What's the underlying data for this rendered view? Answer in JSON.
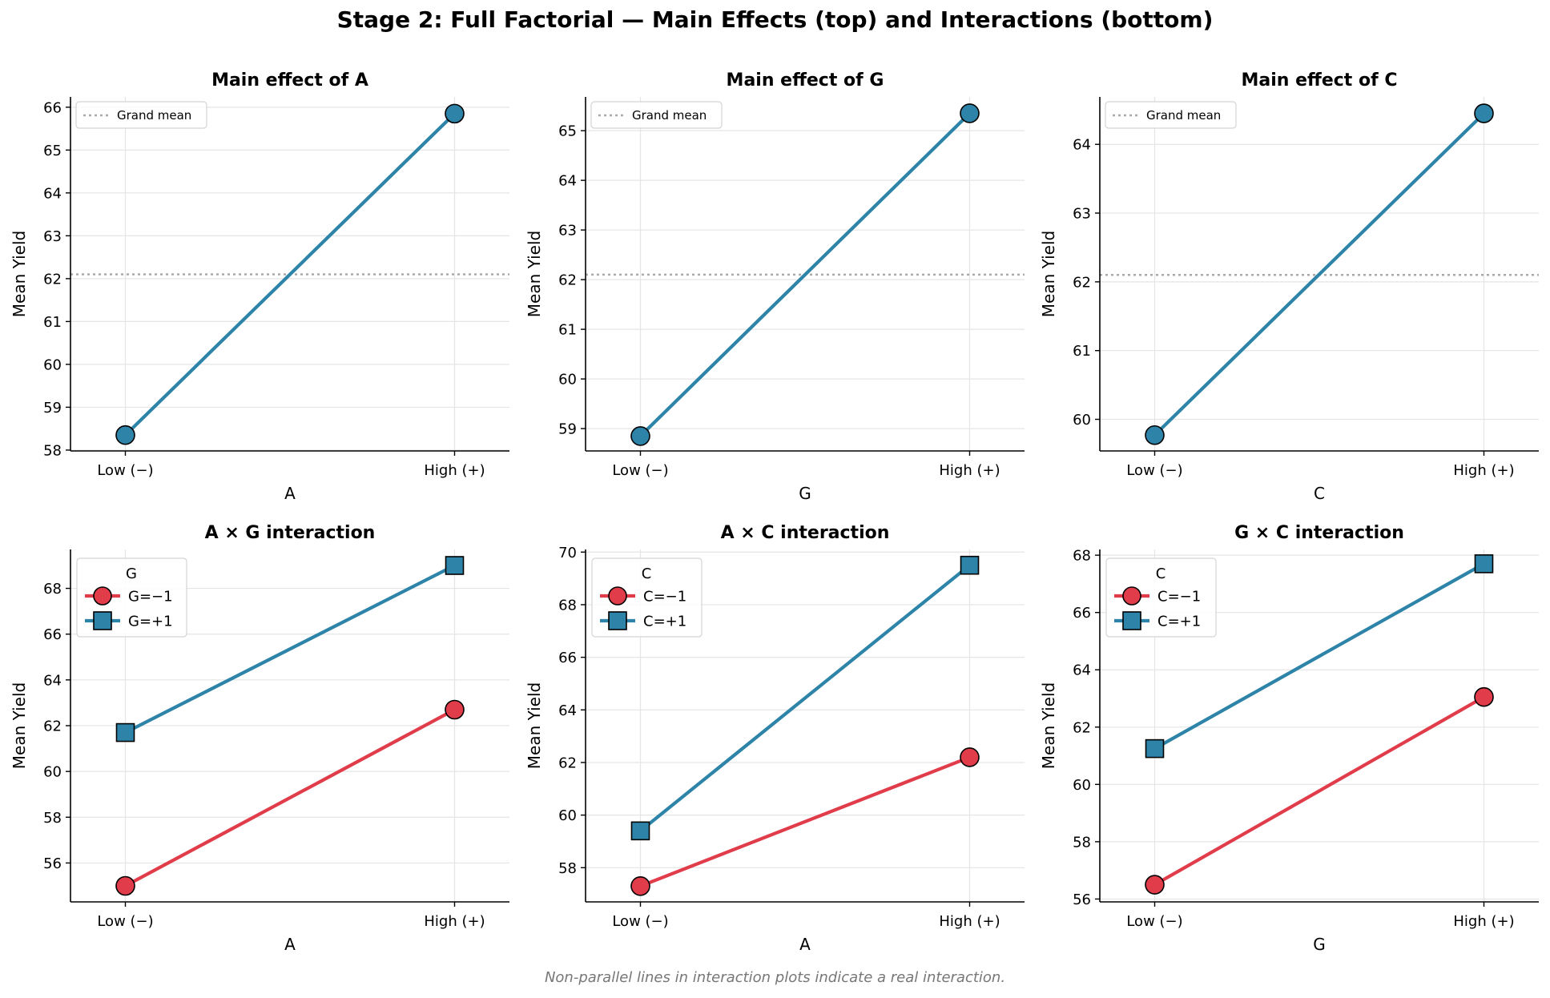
{
  "figure": {
    "title": "Stage 2: Full Factorial — Main Effects (top) and Interactions (bottom)",
    "footnote": "Non-parallel lines in interaction plots indicate a real interaction."
  },
  "colors": {
    "main": "#2d84a8",
    "low_series": "#e03c4a",
    "high_series": "#2d84a8",
    "grand_mean": "#aaaaaa",
    "grid": "#e5e5e5"
  },
  "chart_data": [
    {
      "type": "line",
      "title": "Main effect of A",
      "xlabel": "A",
      "ylabel": "Mean Yield",
      "categories": [
        "Low (−)",
        "High (+)"
      ],
      "ylim": [
        57.98,
        66.24
      ],
      "yticks": [
        58,
        59,
        60,
        61,
        62,
        63,
        64,
        65,
        66
      ],
      "grand_mean": 62.1,
      "legend": {
        "title": "",
        "position": "upper-left",
        "entries": [
          "Grand mean"
        ]
      },
      "grid": true,
      "series": [
        {
          "values": [
            58.35,
            65.85
          ],
          "marker": "circle",
          "color": "#2d84a8"
        }
      ]
    },
    {
      "type": "line",
      "title": "Main effect of G",
      "xlabel": "G",
      "ylabel": "Mean Yield",
      "categories": [
        "Low (−)",
        "High (+)"
      ],
      "ylim": [
        58.55,
        65.68
      ],
      "yticks": [
        59,
        60,
        61,
        62,
        63,
        64,
        65
      ],
      "grand_mean": 62.1,
      "legend": {
        "title": "",
        "position": "upper-left",
        "entries": [
          "Grand mean"
        ]
      },
      "grid": true,
      "series": [
        {
          "values": [
            58.85,
            65.35
          ],
          "marker": "circle",
          "color": "#2d84a8"
        }
      ]
    },
    {
      "type": "line",
      "title": "Main effect of C",
      "xlabel": "C",
      "ylabel": "Mean Yield",
      "categories": [
        "Low (−)",
        "High (+)"
      ],
      "ylim": [
        59.54,
        64.69
      ],
      "yticks": [
        60,
        61,
        62,
        63,
        64
      ],
      "grand_mean": 62.1,
      "legend": {
        "title": "",
        "position": "upper-left",
        "entries": [
          "Grand mean"
        ]
      },
      "grid": true,
      "series": [
        {
          "values": [
            59.77,
            64.45
          ],
          "marker": "circle",
          "color": "#2d84a8"
        }
      ]
    },
    {
      "type": "line",
      "title": "A × G interaction",
      "xlabel": "A",
      "ylabel": "Mean Yield",
      "categories": [
        "Low (−)",
        "High (+)"
      ],
      "ylim": [
        54.3,
        69.7
      ],
      "yticks": [
        56,
        58,
        60,
        62,
        64,
        66,
        68
      ],
      "legend": {
        "title": "G",
        "position": "upper-left"
      },
      "grid": true,
      "series": [
        {
          "name": "G=−1",
          "values": [
            55.0,
            62.7
          ],
          "marker": "circle",
          "color": "#e03c4a"
        },
        {
          "name": "G=+1",
          "values": [
            61.7,
            69.0
          ],
          "marker": "square",
          "color": "#2d84a8"
        }
      ]
    },
    {
      "type": "line",
      "title": "A × C interaction",
      "xlabel": "A",
      "ylabel": "Mean Yield",
      "categories": [
        "Low (−)",
        "High (+)"
      ],
      "ylim": [
        56.7,
        70.1
      ],
      "yticks": [
        58,
        60,
        62,
        64,
        66,
        68,
        70
      ],
      "legend": {
        "title": "C",
        "position": "upper-left"
      },
      "grid": true,
      "series": [
        {
          "name": "C=−1",
          "values": [
            57.3,
            62.2
          ],
          "marker": "circle",
          "color": "#e03c4a"
        },
        {
          "name": "C=+1",
          "values": [
            59.4,
            69.5
          ],
          "marker": "square",
          "color": "#2d84a8"
        }
      ]
    },
    {
      "type": "line",
      "title": "G × C interaction",
      "xlabel": "G",
      "ylabel": "Mean Yield",
      "categories": [
        "Low (−)",
        "High (+)"
      ],
      "ylim": [
        55.9,
        68.2
      ],
      "yticks": [
        56,
        58,
        60,
        62,
        64,
        66,
        68
      ],
      "legend": {
        "title": "C",
        "position": "upper-left"
      },
      "grid": true,
      "series": [
        {
          "name": "C=−1",
          "values": [
            56.5,
            63.05
          ],
          "marker": "circle",
          "color": "#e03c4a"
        },
        {
          "name": "C=+1",
          "values": [
            61.25,
            67.7
          ],
          "marker": "square",
          "color": "#2d84a8"
        }
      ]
    }
  ]
}
